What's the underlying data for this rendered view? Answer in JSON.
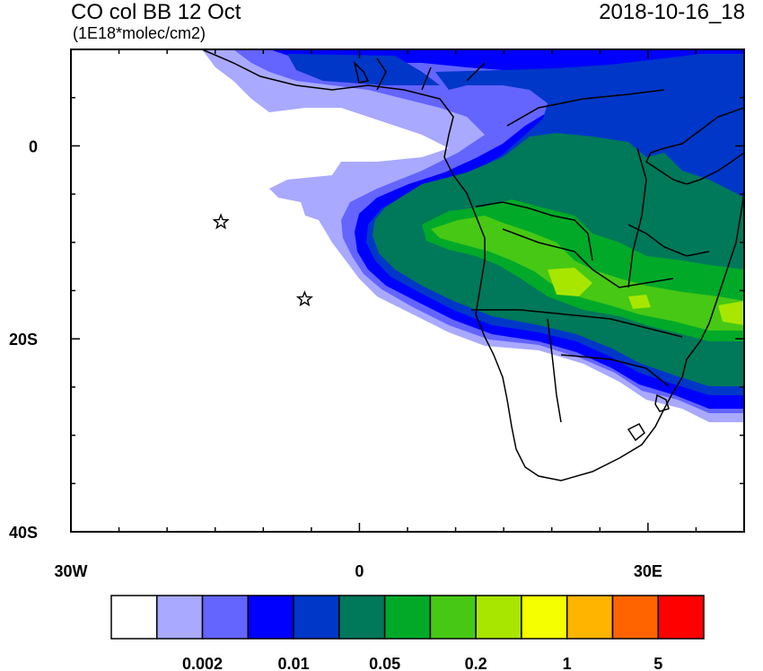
{
  "header": {
    "title": "CO col BB 12 Oct",
    "units": "(1E18*molec/cm2)",
    "timestamp": "2018-10-16_18"
  },
  "map": {
    "lon_range": [
      -30,
      40
    ],
    "lat_range": [
      -40,
      10
    ],
    "x_ticks": [
      {
        "value": -30,
        "label": "30W"
      },
      {
        "value": 0,
        "label": "0"
      },
      {
        "value": 30,
        "label": "30E"
      }
    ],
    "y_ticks": [
      {
        "value": 0,
        "label": "0"
      },
      {
        "value": -20,
        "label": "20S"
      },
      {
        "value": -40,
        "label": "40S"
      }
    ],
    "markers": [
      {
        "type": "star",
        "lon": -14.4,
        "lat": -7.9
      },
      {
        "type": "star",
        "lon": -5.7,
        "lat": -15.9
      }
    ]
  },
  "colorbar": {
    "colors": [
      "#ffffff",
      "#a9a9ff",
      "#6464ff",
      "#0000ff",
      "#0037c8",
      "#00785a",
      "#00aa28",
      "#46c814",
      "#a8e600",
      "#f5ff00",
      "#ffb400",
      "#ff6400",
      "#ff0000"
    ],
    "labels": [
      {
        "after_index": 1,
        "text": "0.002"
      },
      {
        "after_index": 3,
        "text": "0.01"
      },
      {
        "after_index": 5,
        "text": "0.05"
      },
      {
        "after_index": 7,
        "text": "0.2"
      },
      {
        "after_index": 9,
        "text": "1"
      },
      {
        "after_index": 11,
        "text": "5"
      }
    ]
  }
}
